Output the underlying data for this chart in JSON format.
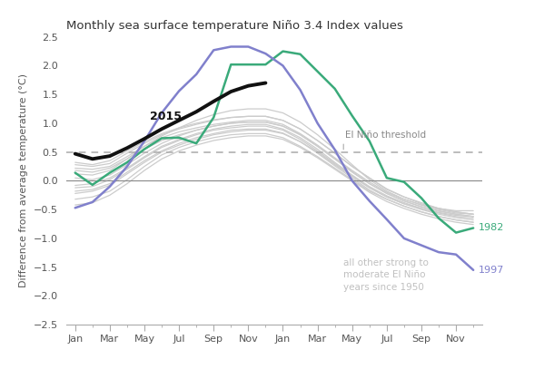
{
  "title": "Monthly sea surface temperature Niño 3.4 Index values",
  "ylabel": "Difference from average temperature (°C)",
  "ylim": [
    -2.5,
    2.5
  ],
  "yticks": [
    -2.5,
    -2.0,
    -1.5,
    -1.0,
    -0.5,
    0.0,
    0.5,
    1.0,
    1.5,
    2.0,
    2.5
  ],
  "threshold": 0.5,
  "threshold_label": "El Niño threshold",
  "x_labels": [
    "Jan",
    "Mar",
    "May",
    "Jul",
    "Sep",
    "Nov",
    "Jan",
    "Mar",
    "May",
    "Jul",
    "Sep",
    "Nov"
  ],
  "background_color": "#ffffff",
  "line_color_2015": "#111111",
  "line_color_1982": "#3aaa7a",
  "line_color_1997": "#8080cc",
  "line_color_other": "#cccccc",
  "annotation_2015": "2015",
  "annotation_1982": "1982",
  "annotation_1997": "1997",
  "annotation_other": "all other strong to\nmoderate El Niño\nyears since 1950",
  "data_2015": [
    0.47,
    0.38,
    0.43,
    0.57,
    0.73,
    0.9,
    1.05,
    1.2,
    1.38,
    1.55,
    1.65,
    1.7
  ],
  "data_1982": [
    0.14,
    -0.07,
    0.14,
    0.32,
    0.55,
    0.74,
    0.75,
    0.65,
    1.1,
    2.02,
    2.02,
    2.02,
    2.25,
    2.2,
    1.9,
    1.6,
    1.13,
    0.69,
    0.05,
    -0.02,
    -0.3,
    -0.65,
    -0.9,
    -0.82
  ],
  "data_1997": [
    -0.47,
    -0.37,
    -0.1,
    0.25,
    0.69,
    1.18,
    1.56,
    1.85,
    2.27,
    2.33,
    2.33,
    2.21,
    2.0,
    1.58,
    1.0,
    0.54,
    0.0,
    -0.35,
    -0.67,
    -1.0,
    -1.12,
    -1.24,
    -1.28,
    -1.55
  ],
  "other_years": [
    [
      0.12,
      0.1,
      0.18,
      0.38,
      0.6,
      0.78,
      0.92,
      1.05,
      1.15,
      1.22,
      1.25,
      1.25,
      1.18,
      1.02,
      0.8,
      0.55,
      0.28,
      0.02,
      -0.18,
      -0.32,
      -0.42,
      -0.48,
      -0.52,
      -0.52
    ],
    [
      -0.12,
      -0.1,
      0.02,
      0.2,
      0.4,
      0.58,
      0.7,
      0.8,
      0.88,
      0.92,
      0.95,
      0.95,
      0.88,
      0.72,
      0.52,
      0.3,
      0.08,
      -0.12,
      -0.28,
      -0.4,
      -0.48,
      -0.55,
      -0.6,
      -0.62
    ],
    [
      0.22,
      0.2,
      0.25,
      0.42,
      0.6,
      0.75,
      0.85,
      0.92,
      0.98,
      1.02,
      1.05,
      1.05,
      0.98,
      0.82,
      0.62,
      0.4,
      0.18,
      -0.02,
      -0.2,
      -0.32,
      -0.42,
      -0.5,
      -0.56,
      -0.58
    ],
    [
      -0.32,
      -0.28,
      -0.18,
      0.02,
      0.25,
      0.45,
      0.58,
      0.68,
      0.75,
      0.8,
      0.82,
      0.82,
      0.75,
      0.6,
      0.42,
      0.22,
      0.02,
      -0.18,
      -0.32,
      -0.44,
      -0.54,
      -0.62,
      -0.68,
      -0.72
    ],
    [
      0.05,
      0.02,
      0.1,
      0.28,
      0.48,
      0.65,
      0.78,
      0.88,
      0.95,
      1.0,
      1.02,
      1.02,
      0.95,
      0.8,
      0.6,
      0.38,
      0.16,
      -0.05,
      -0.22,
      -0.35,
      -0.45,
      -0.52,
      -0.58,
      -0.62
    ],
    [
      -0.22,
      -0.18,
      -0.08,
      0.12,
      0.32,
      0.5,
      0.62,
      0.72,
      0.8,
      0.85,
      0.88,
      0.88,
      0.82,
      0.68,
      0.5,
      0.28,
      0.08,
      -0.12,
      -0.28,
      -0.4,
      -0.5,
      -0.58,
      -0.64,
      -0.68
    ],
    [
      0.28,
      0.25,
      0.3,
      0.48,
      0.65,
      0.8,
      0.9,
      0.98,
      1.05,
      1.1,
      1.12,
      1.12,
      1.05,
      0.9,
      0.7,
      0.48,
      0.25,
      0.05,
      -0.15,
      -0.28,
      -0.4,
      -0.48,
      -0.54,
      -0.58
    ],
    [
      -0.08,
      -0.05,
      0.05,
      0.22,
      0.42,
      0.6,
      0.72,
      0.82,
      0.9,
      0.95,
      0.98,
      0.98,
      0.9,
      0.75,
      0.55,
      0.32,
      0.1,
      -0.1,
      -0.26,
      -0.38,
      -0.48,
      -0.56,
      -0.62,
      -0.65
    ],
    [
      0.18,
      0.15,
      0.22,
      0.38,
      0.55,
      0.7,
      0.8,
      0.88,
      0.95,
      1.0,
      1.02,
      1.02,
      0.95,
      0.8,
      0.6,
      0.38,
      0.15,
      -0.05,
      -0.22,
      -0.35,
      -0.45,
      -0.53,
      -0.58,
      -0.62
    ],
    [
      -0.42,
      -0.38,
      -0.25,
      -0.05,
      0.18,
      0.38,
      0.52,
      0.62,
      0.7,
      0.75,
      0.78,
      0.78,
      0.72,
      0.58,
      0.4,
      0.2,
      0.0,
      -0.2,
      -0.36,
      -0.48,
      -0.58,
      -0.66,
      -0.72,
      -0.76
    ],
    [
      0.32,
      0.28,
      0.35,
      0.52,
      0.68,
      0.82,
      0.92,
      1.0,
      1.06,
      1.1,
      1.12,
      1.12,
      1.05,
      0.9,
      0.7,
      0.48,
      0.25,
      0.05,
      -0.14,
      -0.28,
      -0.38,
      -0.48,
      -0.54,
      -0.58
    ],
    [
      -0.18,
      -0.15,
      -0.05,
      0.15,
      0.35,
      0.52,
      0.65,
      0.75,
      0.82,
      0.88,
      0.9,
      0.9,
      0.83,
      0.68,
      0.48,
      0.26,
      0.05,
      -0.16,
      -0.32,
      -0.44,
      -0.54,
      -0.62,
      -0.68,
      -0.72
    ]
  ]
}
